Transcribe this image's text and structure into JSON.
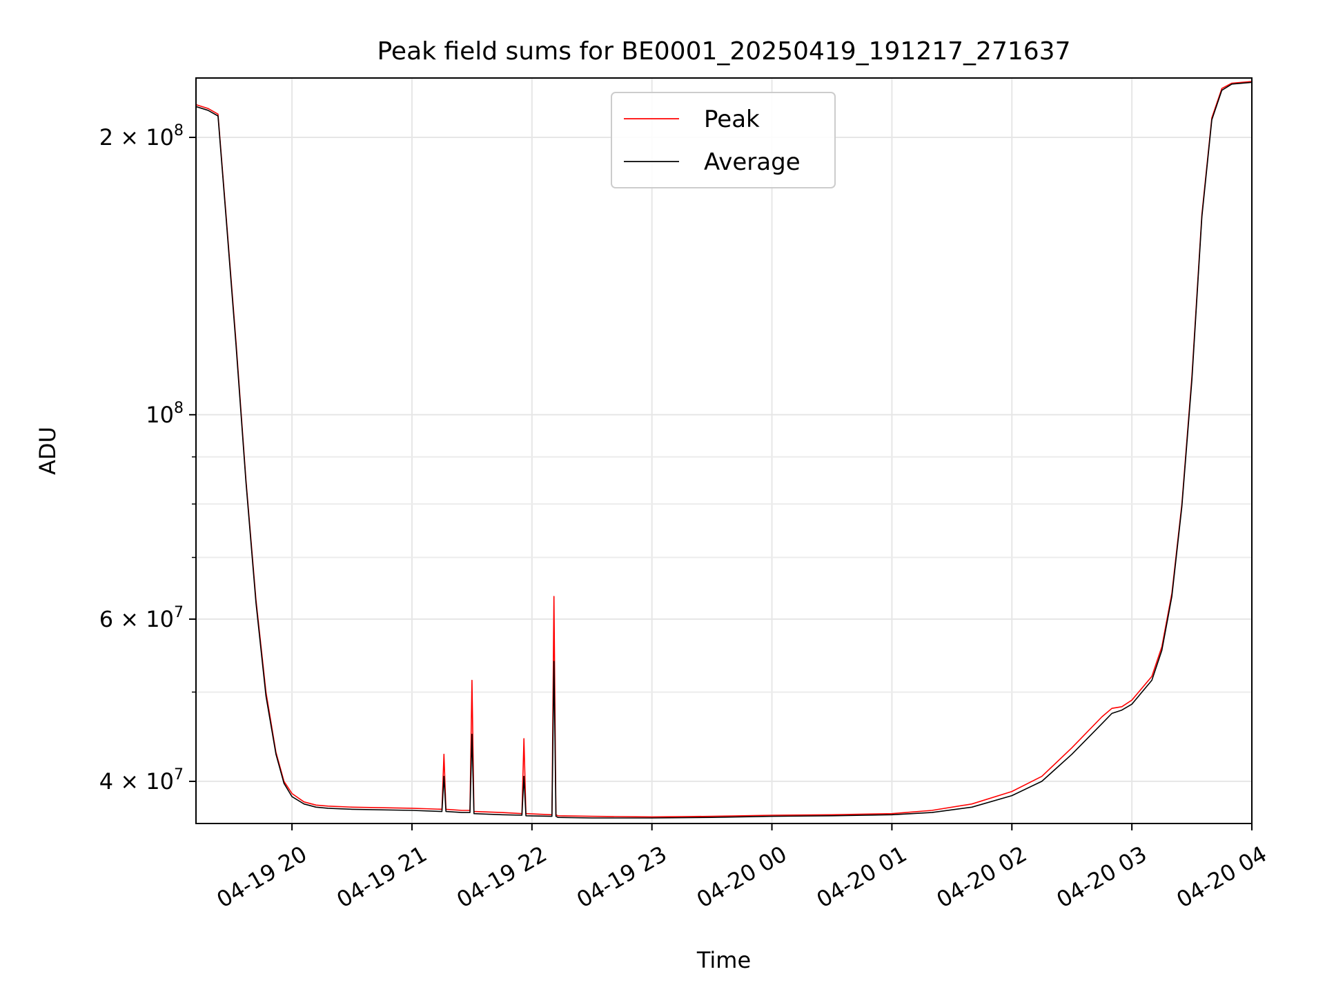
{
  "chart_data": {
    "type": "line",
    "title": "Peak field sums for BE0001_20250419_191217_271637",
    "xlabel": "Time",
    "ylabel": "ADU",
    "yscale": "log",
    "grid": true,
    "legend_placement": "upper-center",
    "xlim": [
      "2025-04-19 19:12",
      "2025-04-20 04:00"
    ],
    "ylim": [
      36000000,
      232000000
    ],
    "x_ticks": [
      {
        "value": "2025-04-19 20:00",
        "label": "04-19 20"
      },
      {
        "value": "2025-04-19 21:00",
        "label": "04-19 21"
      },
      {
        "value": "2025-04-19 22:00",
        "label": "04-19 22"
      },
      {
        "value": "2025-04-19 23:00",
        "label": "04-19 23"
      },
      {
        "value": "2025-04-20 00:00",
        "label": "04-20 00"
      },
      {
        "value": "2025-04-20 01:00",
        "label": "04-20 01"
      },
      {
        "value": "2025-04-20 02:00",
        "label": "04-20 02"
      },
      {
        "value": "2025-04-20 03:00",
        "label": "04-20 03"
      },
      {
        "value": "2025-04-20 04:00",
        "label": "04-20 04"
      }
    ],
    "y_major_ticks": [
      {
        "value": 40000000,
        "mantissa": "4",
        "exp": "7"
      },
      {
        "value": 60000000,
        "mantissa": "6",
        "exp": "7"
      },
      {
        "value": 100000000,
        "mantissa": "",
        "exp": "8"
      },
      {
        "value": 200000000,
        "mantissa": "2",
        "exp": "8"
      }
    ],
    "y_minor_ticks": [
      50000000,
      70000000,
      80000000,
      90000000
    ],
    "series": [
      {
        "name": "Peak",
        "color": "#ff0000",
        "x": [
          "2025-04-19 19:12",
          "2025-04-19 19:18",
          "2025-04-19 19:23",
          "2025-04-19 19:27",
          "2025-04-19 19:32",
          "2025-04-19 19:37",
          "2025-04-19 19:42",
          "2025-04-19 19:47",
          "2025-04-19 19:52",
          "2025-04-19 19:56",
          "2025-04-19 20:00",
          "2025-04-19 20:06",
          "2025-04-19 20:12",
          "2025-04-19 20:18",
          "2025-04-19 20:24",
          "2025-04-19 20:30",
          "2025-04-19 21:00",
          "2025-04-19 21:15",
          "2025-04-19 21:16",
          "2025-04-19 21:17",
          "2025-04-19 21:25",
          "2025-04-19 21:29",
          "2025-04-19 21:30",
          "2025-04-19 21:31",
          "2025-04-19 21:45",
          "2025-04-19 21:55",
          "2025-04-19 21:56",
          "2025-04-19 21:57",
          "2025-04-19 22:10",
          "2025-04-19 22:11",
          "2025-04-19 22:12",
          "2025-04-19 22:13",
          "2025-04-19 22:30",
          "2025-04-19 23:00",
          "2025-04-19 23:30",
          "2025-04-20 00:00",
          "2025-04-20 00:30",
          "2025-04-20 01:00",
          "2025-04-20 01:20",
          "2025-04-20 01:40",
          "2025-04-20 02:00",
          "2025-04-20 02:15",
          "2025-04-20 02:30",
          "2025-04-20 02:45",
          "2025-04-20 02:50",
          "2025-04-20 02:55",
          "2025-04-20 03:00",
          "2025-04-20 03:10",
          "2025-04-20 03:15",
          "2025-04-20 03:20",
          "2025-04-20 03:25",
          "2025-04-20 03:30",
          "2025-04-20 03:35",
          "2025-04-20 03:40",
          "2025-04-20 03:45",
          "2025-04-20 03:50",
          "2025-04-20 04:00"
        ],
        "values": [
          217000000,
          215000000,
          212000000,
          165000000,
          120000000,
          85000000,
          63000000,
          50000000,
          43000000,
          40000000,
          38800000,
          38000000,
          37700000,
          37600000,
          37550000,
          37500000,
          37400000,
          37300000,
          42800000,
          37300000,
          37200000,
          37200000,
          51500000,
          37100000,
          37000000,
          36900000,
          44500000,
          36900000,
          36800000,
          63500000,
          36800000,
          36700000,
          36650000,
          36600000,
          36650000,
          36750000,
          36800000,
          36900000,
          37200000,
          37800000,
          39000000,
          40500000,
          43500000,
          47000000,
          48000000,
          48200000,
          49000000,
          52000000,
          56000000,
          64000000,
          80000000,
          110000000,
          165000000,
          210000000,
          226000000,
          229000000,
          230000000
        ]
      },
      {
        "name": "Average",
        "color": "#000000",
        "x": [
          "2025-04-19 19:12",
          "2025-04-19 19:18",
          "2025-04-19 19:23",
          "2025-04-19 19:27",
          "2025-04-19 19:32",
          "2025-04-19 19:37",
          "2025-04-19 19:42",
          "2025-04-19 19:47",
          "2025-04-19 19:52",
          "2025-04-19 19:56",
          "2025-04-19 20:00",
          "2025-04-19 20:06",
          "2025-04-19 20:12",
          "2025-04-19 20:18",
          "2025-04-19 20:24",
          "2025-04-19 20:30",
          "2025-04-19 21:00",
          "2025-04-19 21:15",
          "2025-04-19 21:16",
          "2025-04-19 21:17",
          "2025-04-19 21:25",
          "2025-04-19 21:29",
          "2025-04-19 21:30",
          "2025-04-19 21:31",
          "2025-04-19 21:45",
          "2025-04-19 21:55",
          "2025-04-19 21:56",
          "2025-04-19 21:57",
          "2025-04-19 22:10",
          "2025-04-19 22:11",
          "2025-04-19 22:12",
          "2025-04-19 22:13",
          "2025-04-19 22:30",
          "2025-04-19 23:00",
          "2025-04-19 23:30",
          "2025-04-20 00:00",
          "2025-04-20 00:30",
          "2025-04-20 01:00",
          "2025-04-20 01:20",
          "2025-04-20 01:40",
          "2025-04-20 02:00",
          "2025-04-20 02:15",
          "2025-04-20 02:30",
          "2025-04-20 02:45",
          "2025-04-20 02:50",
          "2025-04-20 02:55",
          "2025-04-20 03:00",
          "2025-04-20 03:10",
          "2025-04-20 03:15",
          "2025-04-20 03:20",
          "2025-04-20 03:25",
          "2025-04-20 03:30",
          "2025-04-20 03:35",
          "2025-04-20 03:40",
          "2025-04-20 03:45",
          "2025-04-20 03:50",
          "2025-04-20 04:00"
        ],
        "values": [
          216000000,
          214000000,
          211000000,
          164000000,
          119000000,
          84500000,
          62500000,
          49500000,
          42800000,
          39800000,
          38500000,
          37800000,
          37500000,
          37400000,
          37350000,
          37300000,
          37200000,
          37100000,
          40500000,
          37100000,
          37000000,
          37000000,
          45000000,
          36900000,
          36800000,
          36750000,
          40500000,
          36700000,
          36650000,
          54000000,
          36650000,
          36550000,
          36500000,
          36500000,
          36550000,
          36650000,
          36700000,
          36800000,
          37000000,
          37500000,
          38600000,
          40000000,
          42800000,
          46200000,
          47400000,
          47800000,
          48500000,
          51500000,
          55500000,
          63500000,
          79500000,
          109000000,
          164000000,
          209000000,
          225000000,
          228500000,
          229500000
        ]
      }
    ]
  }
}
